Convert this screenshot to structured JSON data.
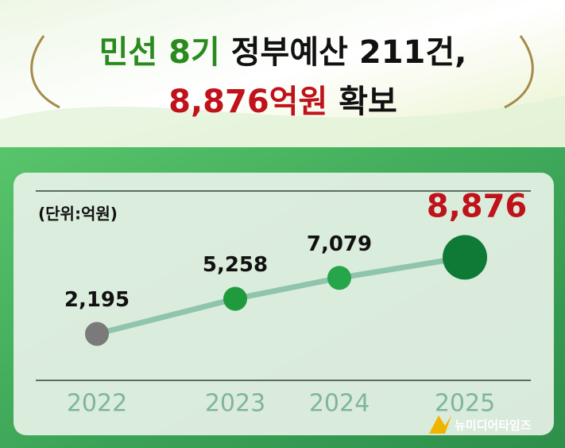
{
  "chart_data": {
    "type": "line",
    "title_parts": [
      {
        "text": "민선 8기",
        "color": "#2a8a1e"
      },
      {
        "text": "정부예산 211건,",
        "color": "#111111"
      },
      {
        "text": "8,876억원",
        "color": "#c0121a"
      },
      {
        "text": "확보",
        "color": "#111111"
      }
    ],
    "unit_label": "(단위:억원)",
    "categories": [
      "2022",
      "2023",
      "2024",
      "2025"
    ],
    "values": [
      2195,
      5258,
      7079,
      8876
    ],
    "value_labels": [
      "2,195",
      "5,258",
      "7,079",
      "8,876"
    ],
    "point_colors": [
      "#7a7a7a",
      "#1f9a3c",
      "#27a54a",
      "#0e7a35"
    ],
    "line_color": "#8fc4ad",
    "highlight_color": "#c0121a",
    "highlight_last": true,
    "ylim": [
      -2000,
      10500
    ],
    "watermark": "뉴미디어타임즈"
  }
}
